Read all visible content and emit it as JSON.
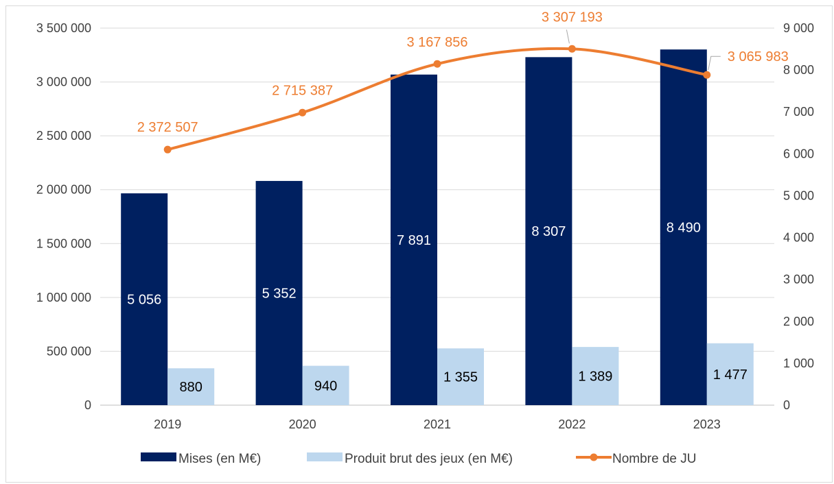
{
  "chart_data": {
    "type": "bar",
    "categories": [
      "2019",
      "2020",
      "2021",
      "2022",
      "2023"
    ],
    "series": [
      {
        "name": "Mises (en M€)",
        "kind": "bar",
        "axis": "right",
        "values": [
          5056,
          5352,
          7891,
          8307,
          8490
        ],
        "labels": [
          "5 056",
          "5 352",
          "7 891",
          "8 307",
          "8 490"
        ],
        "color": "#002060"
      },
      {
        "name": "Produit brut des jeux (en M€)",
        "kind": "bar",
        "axis": "right",
        "values": [
          880,
          940,
          1355,
          1389,
          1477
        ],
        "labels": [
          "880",
          "940",
          "1 355",
          "1 389",
          "1 477"
        ],
        "color": "#bdd7ee"
      },
      {
        "name": "Nombre de JU",
        "kind": "line",
        "axis": "left",
        "values": [
          2372507,
          2715387,
          3167856,
          3307193,
          3065983
        ],
        "labels": [
          "2 372 507",
          "2 715 387",
          "3 167 856",
          "3 307 193",
          "3 065 983"
        ],
        "color": "#ed7d31"
      }
    ],
    "y_left": {
      "range": [
        0,
        3500000
      ],
      "ticks": [
        "0",
        "500 000",
        "1 000 000",
        "1 500 000",
        "2 000 000",
        "2 500 000",
        "3 000 000",
        "3 500 000"
      ]
    },
    "y_right": {
      "range": [
        0,
        9000
      ],
      "ticks": [
        "0",
        "1 000",
        "2 000",
        "3 000",
        "4 000",
        "5 000",
        "6 000",
        "7 000",
        "8 000",
        "9 000"
      ]
    },
    "grid": true,
    "legend": "bottom"
  }
}
